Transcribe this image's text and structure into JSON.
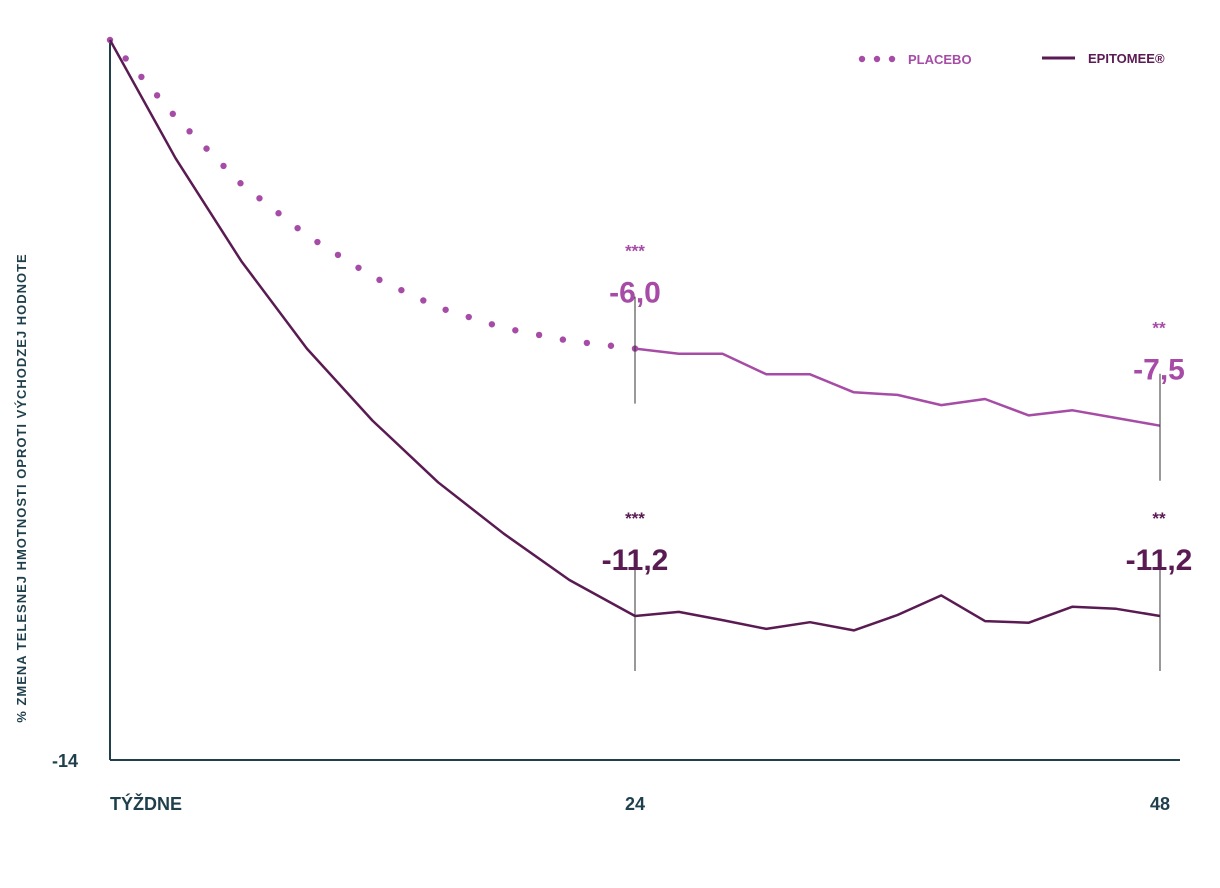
{
  "colors": {
    "placebo": "#a64ca6",
    "epitomee": "#5a1a52",
    "axis": "#1f3f4c",
    "marker": "#333333"
  },
  "chart_data": {
    "type": "line",
    "xlabel": "TÝŽDNE",
    "ylabel": "% ZMENA TELESNEJ HMOTNOSTI OPROTI VÝCHODZEJ HODNOTE",
    "x_ticks": [
      "24",
      "48"
    ],
    "y_ticks": [
      "-14"
    ],
    "xlim": [
      0,
      48
    ],
    "ylim": [
      -14,
      0
    ],
    "legend_position": "top-right",
    "series": [
      {
        "name": "PLACEBO",
        "style": "dotted-then-solid",
        "x": [
          0,
          3,
          6,
          9,
          12,
          15,
          18,
          21,
          24,
          26,
          28,
          30,
          32,
          34,
          36,
          38,
          40,
          42,
          44,
          46,
          48
        ],
        "y": [
          0,
          -1.5,
          -2.8,
          -3.8,
          -4.6,
          -5.2,
          -5.6,
          -5.85,
          -6.0,
          -6.1,
          -6.1,
          -6.5,
          -6.5,
          -6.85,
          -6.9,
          -7.1,
          -6.98,
          -7.3,
          -7.2,
          -7.35,
          -7.5
        ]
      },
      {
        "name": "EPITOMEE®",
        "style": "solid",
        "x": [
          0,
          3,
          6,
          9,
          12,
          15,
          18,
          21,
          24,
          26,
          28,
          30,
          32,
          34,
          36,
          38,
          40,
          42,
          44,
          46,
          48
        ],
        "y": [
          0,
          -2.3,
          -4.3,
          -6.0,
          -7.4,
          -8.6,
          -9.6,
          -10.5,
          -11.2,
          -11.12,
          -11.28,
          -11.45,
          -11.32,
          -11.48,
          -11.18,
          -10.8,
          -11.3,
          -11.33,
          -11.02,
          -11.06,
          -11.2
        ]
      }
    ],
    "annotations": [
      {
        "series": "PLACEBO",
        "x": 24,
        "value": "-6,0",
        "sig": "***"
      },
      {
        "series": "PLACEBO",
        "x": 48,
        "value": "-7,5",
        "sig": "**"
      },
      {
        "series": "EPITOMEE®",
        "x": 24,
        "value": "-11,2",
        "sig": "***"
      },
      {
        "series": "EPITOMEE®",
        "x": 48,
        "value": "-11,2",
        "sig": "**"
      }
    ]
  }
}
